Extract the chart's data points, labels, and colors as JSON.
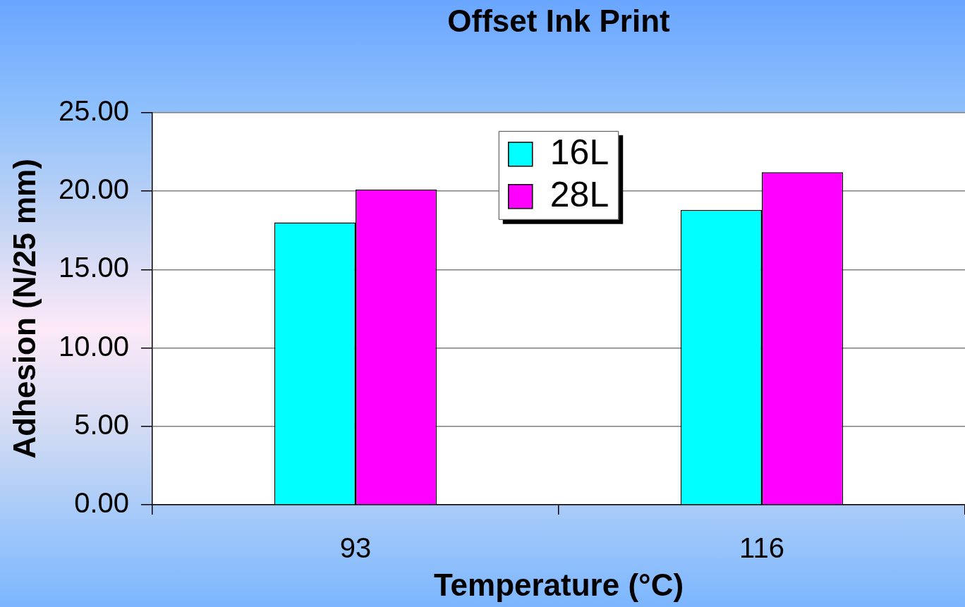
{
  "chart_data": {
    "type": "bar",
    "title": "Offset Ink Print",
    "xlabel": "Temperature (°C)",
    "ylabel": "Adhesion (N/25 mm)",
    "categories": [
      "93",
      "116"
    ],
    "series": [
      {
        "name": "16L",
        "color": "#00ffff",
        "values": [
          18.0,
          18.8
        ]
      },
      {
        "name": "28L",
        "color": "#ff00ff",
        "values": [
          20.1,
          21.2
        ]
      }
    ],
    "ylim": [
      0,
      25
    ],
    "yticks": [
      {
        "value": 0,
        "label": "0.00"
      },
      {
        "value": 5,
        "label": "5.00"
      },
      {
        "value": 10,
        "label": "10.00"
      },
      {
        "value": 15,
        "label": "15.00"
      },
      {
        "value": 20,
        "label": "20.00"
      },
      {
        "value": 25,
        "label": "25.00"
      }
    ],
    "grid": "y",
    "legend": "top"
  }
}
